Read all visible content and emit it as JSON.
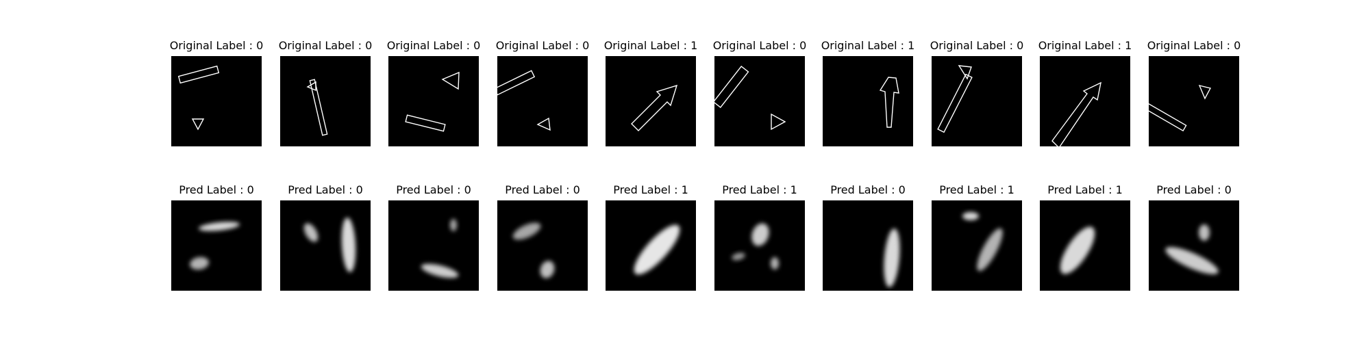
{
  "rows": [
    {
      "label_prefix": "Original Label :",
      "kind": "outline",
      "panels": [
        {
          "label": "0",
          "shapes": [
            "bar-shape",
            "triangle-shape"
          ]
        },
        {
          "label": "0",
          "shapes": [
            "triangle-shape",
            "bar-shape"
          ]
        },
        {
          "label": "0",
          "shapes": [
            "triangle-shape",
            "bar-shape"
          ]
        },
        {
          "label": "0",
          "shapes": [
            "bar-shape",
            "triangle-shape"
          ]
        },
        {
          "label": "1",
          "shapes": [
            "arrow-shape"
          ]
        },
        {
          "label": "0",
          "shapes": [
            "bar-shape",
            "triangle-shape"
          ]
        },
        {
          "label": "1",
          "shapes": [
            "arrow-shape"
          ]
        },
        {
          "label": "0",
          "shapes": [
            "triangle-shape",
            "bar-shape"
          ]
        },
        {
          "label": "1",
          "shapes": [
            "arrow-shape"
          ]
        },
        {
          "label": "0",
          "shapes": [
            "triangle-shape",
            "bar-shape"
          ]
        }
      ]
    },
    {
      "label_prefix": "Pred Label :",
      "kind": "blur",
      "panels": [
        {
          "label": "0",
          "shapes": [
            "blurred-blob",
            "blurred-blob"
          ]
        },
        {
          "label": "0",
          "shapes": [
            "blurred-blob",
            "blurred-blob"
          ]
        },
        {
          "label": "0",
          "shapes": [
            "blurred-blob",
            "blurred-blob"
          ]
        },
        {
          "label": "0",
          "shapes": [
            "blurred-blob",
            "blurred-blob"
          ]
        },
        {
          "label": "1",
          "shapes": [
            "blurred-blob"
          ]
        },
        {
          "label": "1",
          "shapes": [
            "blurred-blob",
            "blurred-blob",
            "blurred-blob"
          ]
        },
        {
          "label": "0",
          "shapes": [
            "blurred-blob"
          ]
        },
        {
          "label": "1",
          "shapes": [
            "blurred-blob",
            "blurred-blob"
          ]
        },
        {
          "label": "1",
          "shapes": [
            "blurred-blob"
          ]
        },
        {
          "label": "0",
          "shapes": [
            "blurred-blob",
            "blurred-blob"
          ]
        }
      ]
    }
  ],
  "colors": {
    "figure_background": "#ffffff",
    "panel_background": "#000000",
    "shape_stroke": "#ffffff",
    "text": "#000000"
  }
}
